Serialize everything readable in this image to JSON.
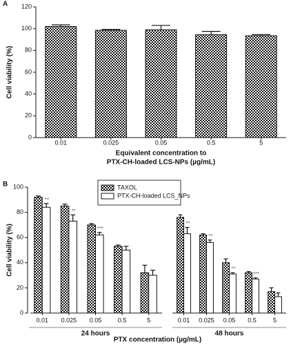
{
  "chart_data": [
    {
      "type": "bar",
      "panel": "A",
      "y_label": "Cell viability (%)",
      "x_label": [
        "Equivalent concentration to",
        "PTX-CH-loaded LCS-NPs (µg/mL)"
      ],
      "categories": [
        "0.01",
        "0.025",
        "0.05",
        "0.5",
        "5"
      ],
      "series": [
        {
          "color": "#111111",
          "values": [
            102,
            98.5,
            99,
            94.5,
            93.5
          ],
          "errors": [
            1.5,
            0.8,
            4,
            3,
            1
          ]
        }
      ],
      "ylim": [
        0,
        120
      ],
      "yticks": [
        0,
        20,
        40,
        60,
        80,
        100,
        120
      ]
    },
    {
      "type": "bar",
      "panel": "B",
      "y_label": "Cell viability (%)",
      "x_label": [
        "PTX concentration (µg/mL)"
      ],
      "group_labels": [
        "24 hours",
        "48 hours"
      ],
      "categories": [
        "0.01",
        "0.025",
        "0.05",
        "0.5",
        "5",
        "0.01",
        "0.025",
        "0.05",
        "0.5",
        "5"
      ],
      "series": [
        {
          "name": "TAXOL",
          "color": "#111111",
          "values": [
            92,
            85,
            70,
            53,
            32,
            76,
            62,
            40,
            32,
            17
          ],
          "errors": [
            1,
            1.5,
            1,
            1,
            6,
            2,
            1,
            3,
            1,
            3
          ]
        },
        {
          "name": "PTX-CH-loaded LCS_NPs",
          "color": "#ffffff",
          "values": [
            84,
            73,
            62,
            50,
            30,
            63,
            56,
            31,
            27,
            13
          ],
          "errors": [
            3,
            5,
            2,
            3,
            4,
            5,
            2,
            1,
            1,
            3
          ],
          "annotations": [
            "**",
            "**",
            "***",
            null,
            null,
            "**",
            "**",
            "**",
            "***",
            null
          ]
        }
      ],
      "ylim": [
        0,
        100
      ],
      "yticks": [
        0,
        20,
        40,
        60,
        80,
        100
      ],
      "legend": "top-center"
    }
  ]
}
